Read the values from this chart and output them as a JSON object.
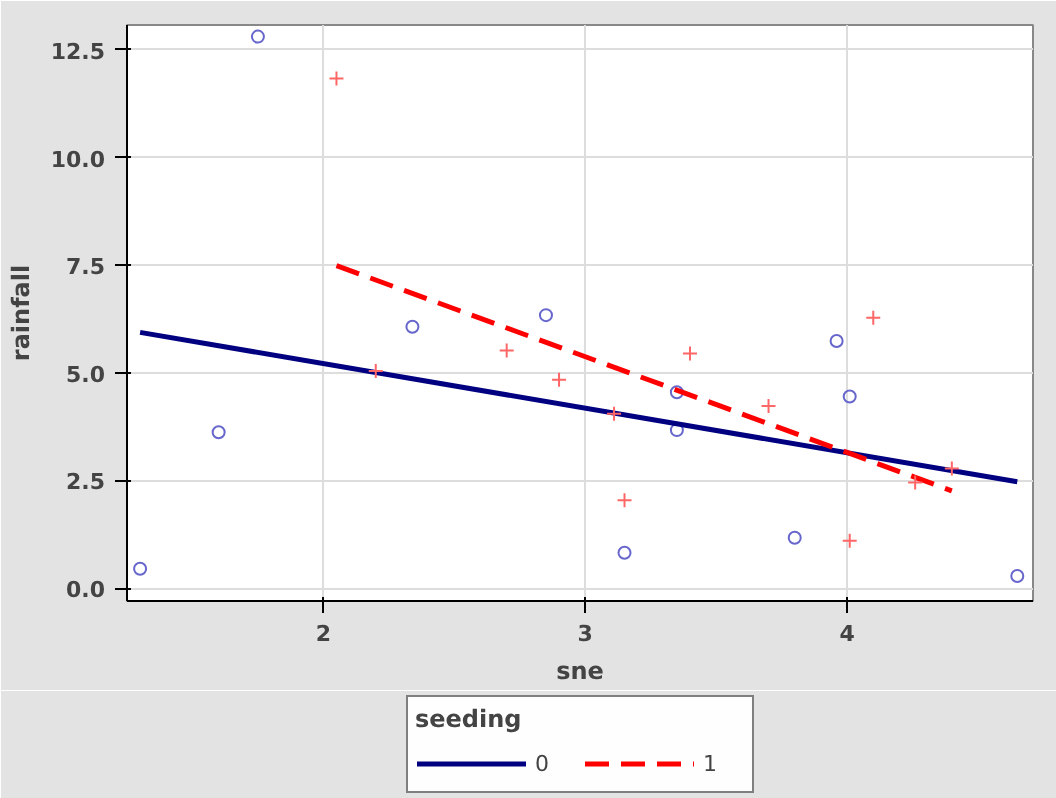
{
  "chart_data": {
    "type": "scatter",
    "xlabel": "sne",
    "ylabel": "rainfall",
    "legend_title": "seeding",
    "legend": "bottom",
    "grid": true,
    "xlim": [
      1.25,
      4.71
    ],
    "ylim": [
      -0.3,
      13.08
    ],
    "xticks": [
      2,
      3,
      4
    ],
    "yticks": [
      {
        "value": 0,
        "label": "0.0"
      },
      {
        "value": 2.5,
        "label": "2.5"
      },
      {
        "value": 5,
        "label": "5.0"
      },
      {
        "value": 7.5,
        "label": "7.5"
      },
      {
        "value": 10,
        "label": "10.0"
      },
      {
        "value": 12.5,
        "label": "12.5"
      }
    ],
    "series": [
      {
        "marker": "circle",
        "color": "#6666cc",
        "x": [
          1.3,
          1.6,
          1.75,
          2.34,
          2.85,
          3.35,
          3.35,
          3.15,
          3.8,
          3.96,
          4.01,
          4.65
        ],
        "values": [
          0.45,
          3.62,
          12.81,
          6.07,
          6.34,
          4.55,
          3.67,
          0.82,
          1.17,
          5.74,
          4.45,
          0.28
        ]
      },
      {
        "marker": "cross",
        "color": "#ff6666",
        "x": [
          2.05,
          2.2,
          2.7,
          2.9,
          3.11,
          3.4,
          3.15,
          3.7,
          4.1,
          4.01,
          4.26,
          4.4
        ],
        "values": [
          11.84,
          5.04,
          5.52,
          4.84,
          4.05,
          5.45,
          2.04,
          4.23,
          6.28,
          1.1,
          2.45,
          2.78
        ]
      },
      {
        "type": "line",
        "name": "0",
        "color": "#000080",
        "line_style": "solid",
        "x": [
          1.3,
          4.65
        ],
        "values": [
          5.94,
          2.47
        ]
      },
      {
        "type": "line",
        "name": "1",
        "color": "#ff0000",
        "line_style": "dashed",
        "x": [
          2.05,
          4.4
        ],
        "values": [
          7.49,
          2.26
        ]
      }
    ]
  }
}
